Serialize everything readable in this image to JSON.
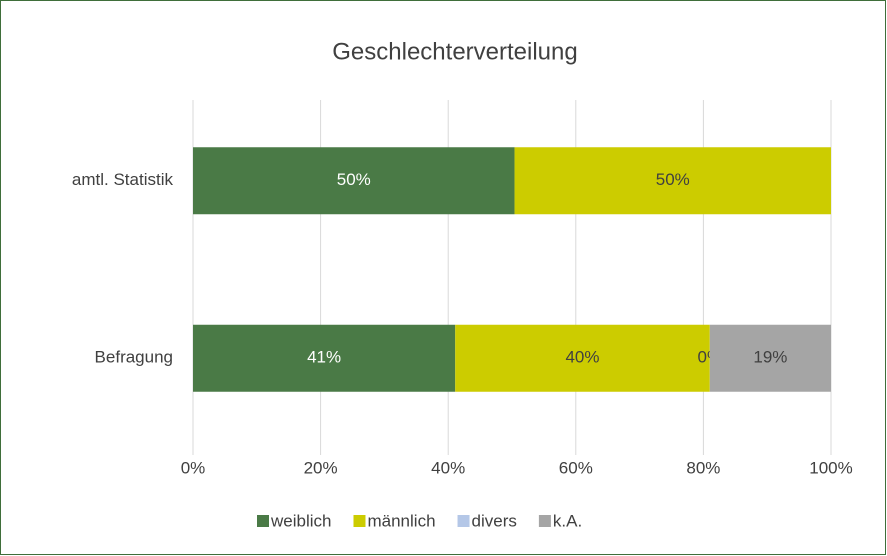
{
  "chart_data": {
    "type": "stacked_barh",
    "title": "Geschlechterverteilung",
    "categories": [
      "amtl. Statistik",
      "Befragung"
    ],
    "series": [
      {
        "name": "weiblich",
        "color": "#4a7a46",
        "values": [
          50.4,
          41.1
        ],
        "value_labels": [
          "50%",
          "41%"
        ]
      },
      {
        "name": "männlich",
        "color": "#cccc00",
        "values": [
          49.6,
          39.9
        ],
        "value_labels": [
          "50%",
          "40%"
        ]
      },
      {
        "name": "divers",
        "color": "#b4c7e7",
        "values": [
          null,
          0
        ],
        "value_labels": [
          null,
          "0%"
        ]
      },
      {
        "name": "k.A.",
        "color": "#a5a5a5",
        "values": [
          null,
          19.0
        ],
        "value_labels": [
          null,
          "19%"
        ]
      }
    ],
    "xlim": [
      0,
      100
    ],
    "xticks": [
      {
        "value": 0,
        "label": "0%"
      },
      {
        "value": 20,
        "label": "20%"
      },
      {
        "value": 40,
        "label": "40%"
      },
      {
        "value": 60,
        "label": "60%"
      },
      {
        "value": 80,
        "label": "80%"
      },
      {
        "value": 100,
        "label": "100%"
      }
    ],
    "grid": true,
    "legend": "bottom"
  }
}
